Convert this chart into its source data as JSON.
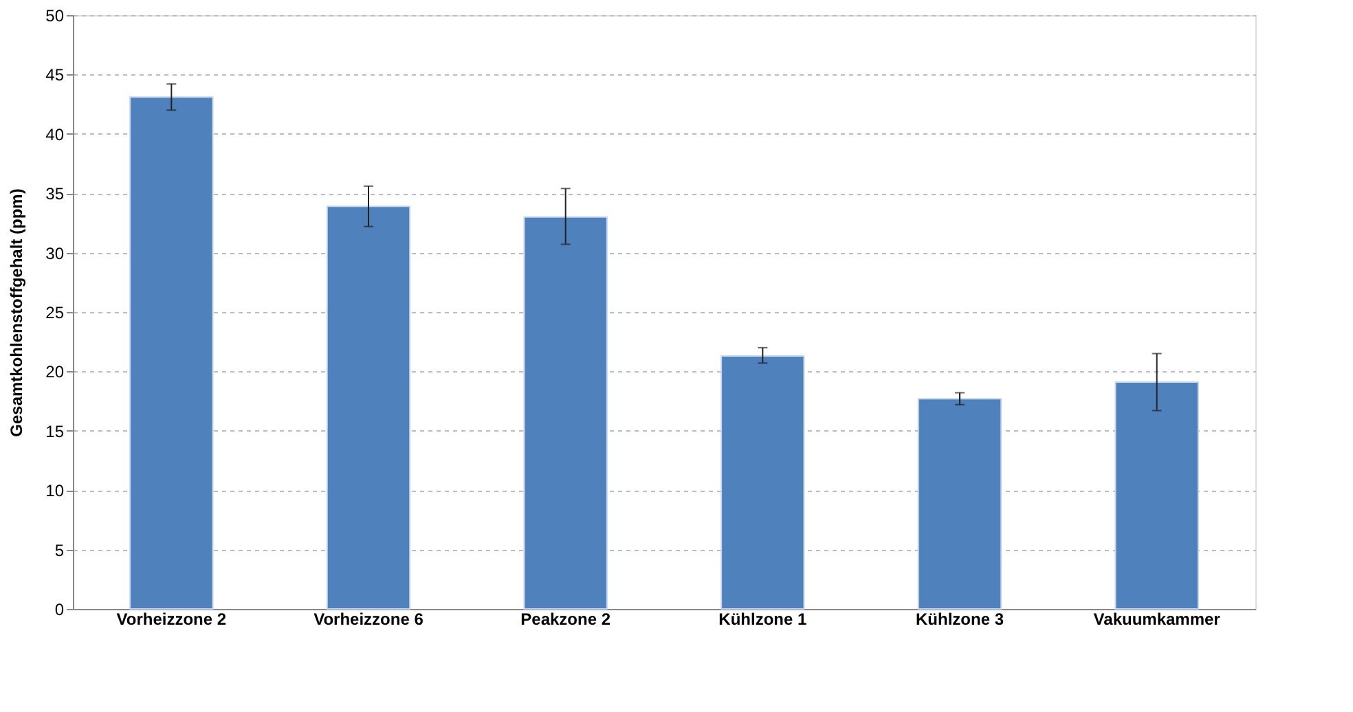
{
  "chart_data": {
    "type": "bar",
    "ylabel": "Gesamtkohlenstoffgehalt  (ppm)",
    "categories": [
      "Vorheizzone 2",
      "Vorheizzone 6",
      "Peakzone 2",
      "Kühlzone 1",
      "Kühlzone 3",
      "Vakuumkammer"
    ],
    "values": [
      43.1,
      33.9,
      33.0,
      21.3,
      17.7,
      19.1
    ],
    "errors": [
      [
        42.0,
        44.2
      ],
      [
        32.2,
        35.6
      ],
      [
        30.7,
        35.4
      ],
      [
        20.7,
        22.0
      ],
      [
        17.2,
        18.2
      ],
      [
        16.7,
        21.5
      ]
    ],
    "color": "#4f81bd",
    "ylim": [
      0,
      50
    ],
    "yticks": [
      0,
      5,
      10,
      15,
      20,
      25,
      30,
      35,
      40,
      45,
      50
    ],
    "grid": "y"
  }
}
